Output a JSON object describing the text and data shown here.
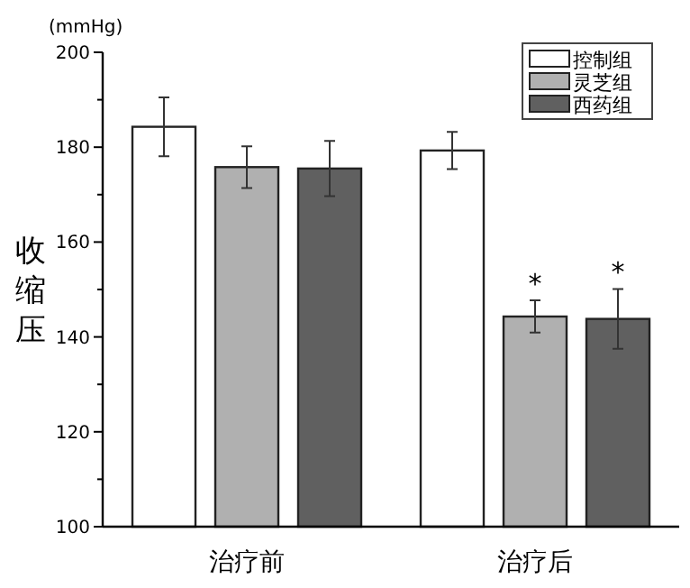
{
  "chart_data": {
    "type": "bar",
    "ylabel": "收缩压",
    "annotations": [
      "(mmHg)",
      "*",
      "*"
    ],
    "categories": [
      "治疗前",
      "治疗后"
    ],
    "series": [
      {
        "name": "控制组",
        "color": "#ffffff",
        "values": [
          184.3,
          179.3
        ],
        "errors": [
          6.2,
          3.9
        ]
      },
      {
        "name": "灵芝组",
        "color": "#b0b0b0",
        "values": [
          175.8,
          144.3
        ],
        "errors": [
          4.4,
          3.4
        ]
      },
      {
        "name": "西药组",
        "color": "#606060",
        "values": [
          175.5,
          143.8
        ],
        "errors": [
          5.8,
          6.3
        ]
      }
    ],
    "ylim": [
      100,
      200
    ],
    "yticks": [
      100,
      {
        "value": 110,
        "label": null
      },
      120,
      {
        "value": 130,
        "label": null
      },
      140,
      {
        "value": 150,
        "label": null
      },
      160,
      {
        "value": 170,
        "label": null
      },
      180,
      {
        "value": 190,
        "label": null
      },
      200
    ],
    "legend": "top right"
  }
}
